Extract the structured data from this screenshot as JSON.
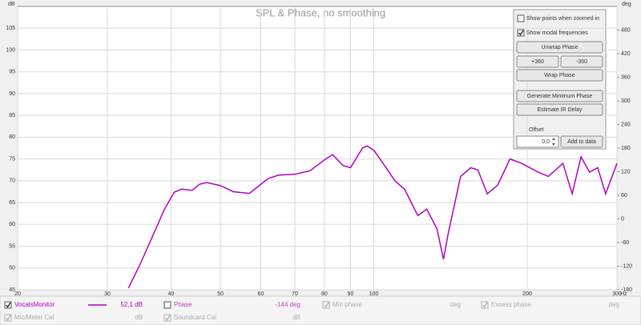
{
  "chart_data": {
    "type": "line",
    "title": "SPL & Phase, no smoothing",
    "ylabel": "dB",
    "y2label": "deg",
    "xlabel": "Hz",
    "xscale": "log",
    "grid": true,
    "x": [
      33,
      34.8,
      36.8,
      38.8,
      40.6,
      42,
      44,
      45.5,
      47,
      50,
      53,
      57,
      62,
      65,
      70,
      75,
      80,
      83,
      87,
      90,
      95,
      97,
      100,
      105,
      110,
      115,
      122,
      127,
      133,
      137,
      140,
      148,
      155,
      160,
      167,
      175,
      185,
      195,
      210,
      220,
      235,
      245,
      255,
      265,
      275,
      285,
      300
    ],
    "series": [
      {
        "name": "VocalsMonitor",
        "color": "#b000c0",
        "values": [
          45.4,
          50.9,
          57.3,
          63.4,
          67.4,
          68.1,
          67.8,
          69.2,
          69.6,
          68.9,
          67.5,
          67.1,
          70.5,
          71.3,
          71.5,
          72.3,
          74.8,
          76,
          73.5,
          73,
          77.5,
          78,
          77,
          73.5,
          70,
          68,
          62,
          63.5,
          59,
          52,
          58,
          71,
          73,
          72.5,
          67,
          69,
          75,
          74,
          72,
          71,
          74,
          67,
          75.5,
          72,
          73,
          67,
          74
        ]
      }
    ],
    "xlim": [
      20,
      300
    ],
    "xticks": [
      20,
      30,
      40,
      50,
      60,
      70,
      80,
      90,
      100,
      200,
      300
    ],
    "ylim": [
      45,
      110
    ],
    "yticks": [
      45,
      50,
      55,
      60,
      65,
      70,
      75,
      80,
      85,
      90,
      95,
      100,
      105
    ],
    "y2lim": [
      -180,
      540
    ],
    "y2ticks": [
      -180,
      -120,
      -60,
      0,
      60,
      120,
      180,
      240,
      300,
      360,
      420,
      480
    ]
  },
  "legend": {
    "rows": [
      [
        {
          "label": "VocalsMonitor",
          "reading": "52,1 dB",
          "checked": true,
          "enabled": true
        },
        {
          "label": "Phase",
          "reading": "-144 deg",
          "checked": false,
          "enabled": true
        },
        {
          "label": "Min phase",
          "reading": "deg",
          "checked": true,
          "enabled": false
        },
        {
          "label": "Excess phase",
          "reading": "deg",
          "checked": true,
          "enabled": false
        }
      ],
      [
        {
          "label": "Mic/Meter Cal",
          "reading": "dB",
          "checked": true,
          "enabled": false
        },
        {
          "label": "Soundcard Cal",
          "reading": "dB",
          "checked": true,
          "enabled": false
        }
      ]
    ]
  },
  "controls": {
    "checkboxes": [
      {
        "label": "Show points when zoomed in",
        "checked": false
      },
      {
        "label": "Show modal frequencies",
        "checked": true
      }
    ],
    "buttons": [
      "Unwrap Phase",
      "+360",
      "-360",
      "Wrap Phase",
      "Generate Minimum Phase",
      "Estimate IR Delay"
    ],
    "offset_label": "Offset",
    "offset_value": "0,0",
    "add_button": "Add to data"
  }
}
